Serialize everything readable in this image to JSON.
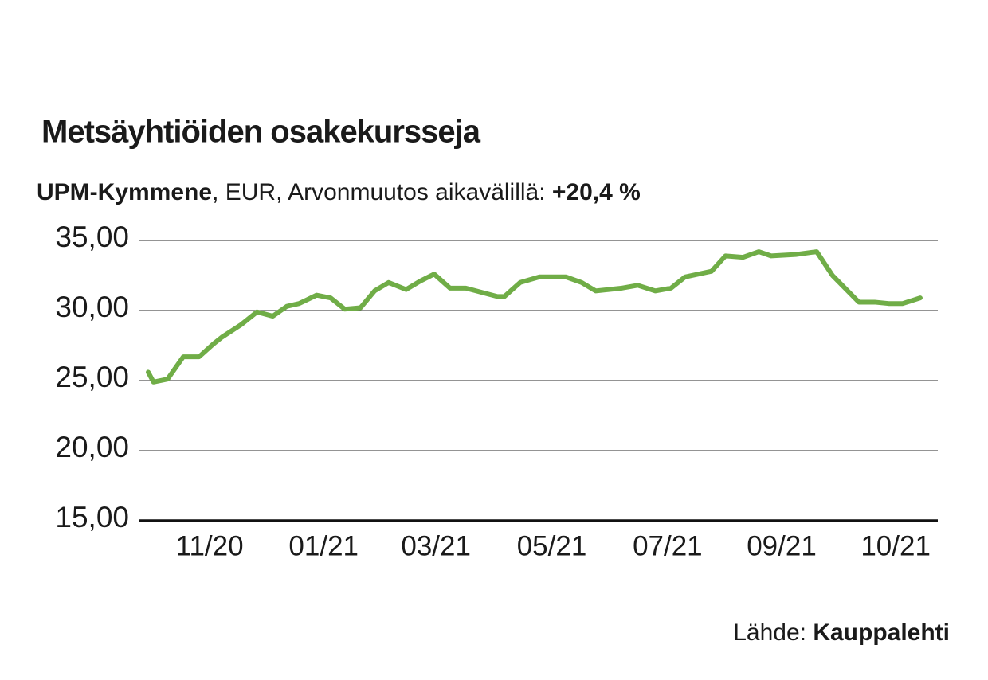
{
  "chart_data": {
    "type": "line",
    "title": "Metsäyhtiöiden osakekursseja",
    "subtitle": {
      "company": "UPM-Kymmene",
      "text": ", EUR, Arvonmuutos aikavälillä: ",
      "change": "+20,4 %"
    },
    "source": {
      "label": "Lähde: ",
      "name": "Kauppalehti"
    },
    "x": [
      0,
      0.3,
      1.1,
      2.0,
      2.9,
      3.7,
      4.2,
      5.3,
      6.2,
      7.1,
      7.9,
      8.6,
      9.6,
      10.4,
      11.2,
      12.1,
      12.9,
      13.7,
      14.7,
      15.5,
      16.3,
      17.2,
      18.1,
      19.0,
      19.9,
      20.3,
      21.2,
      22.3,
      23.8,
      24.7,
      25.5,
      27.0,
      27.9,
      28.9,
      29.8,
      30.6,
      32.1,
      32.9,
      33.9,
      34.8,
      35.5,
      36.9,
      38.1,
      39.0,
      40.5,
      41.4,
      42.2,
      43.0,
      44.0
    ],
    "series": [
      {
        "name": "UPM-Kymmene",
        "color": "#70ad47",
        "values": [
          25.6,
          24.9,
          25.1,
          26.7,
          26.7,
          27.6,
          28.1,
          29.0,
          29.9,
          29.6,
          30.3,
          30.5,
          31.1,
          30.9,
          30.1,
          30.2,
          31.4,
          32.0,
          31.5,
          32.1,
          32.6,
          31.6,
          31.6,
          31.3,
          31.0,
          31.0,
          32.0,
          32.4,
          32.4,
          32.0,
          31.4,
          31.6,
          31.8,
          31.4,
          31.6,
          32.4,
          32.8,
          33.9,
          33.8,
          34.2,
          33.9,
          34.0,
          34.2,
          32.5,
          30.6,
          30.6,
          30.5,
          30.5,
          30.9
        ]
      }
    ],
    "xlim": [
      -0.5,
      45
    ],
    "xticks": [
      {
        "value": 3.5,
        "label": "11/20"
      },
      {
        "value": 10,
        "label": "01/21"
      },
      {
        "value": 16.4,
        "label": "03/21"
      },
      {
        "value": 23,
        "label": "05/21"
      },
      {
        "value": 29.6,
        "label": "07/21"
      },
      {
        "value": 36.1,
        "label": "09/21"
      },
      {
        "value": 42.6,
        "label": "10/21"
      }
    ],
    "ylim": [
      15,
      35
    ],
    "yticks": [
      {
        "value": 15,
        "label": "15,00"
      },
      {
        "value": 20,
        "label": "20,00"
      },
      {
        "value": 25,
        "label": "25,00"
      },
      {
        "value": 30,
        "label": "30,00"
      },
      {
        "value": 35,
        "label": "35,00"
      }
    ],
    "grid": true
  }
}
